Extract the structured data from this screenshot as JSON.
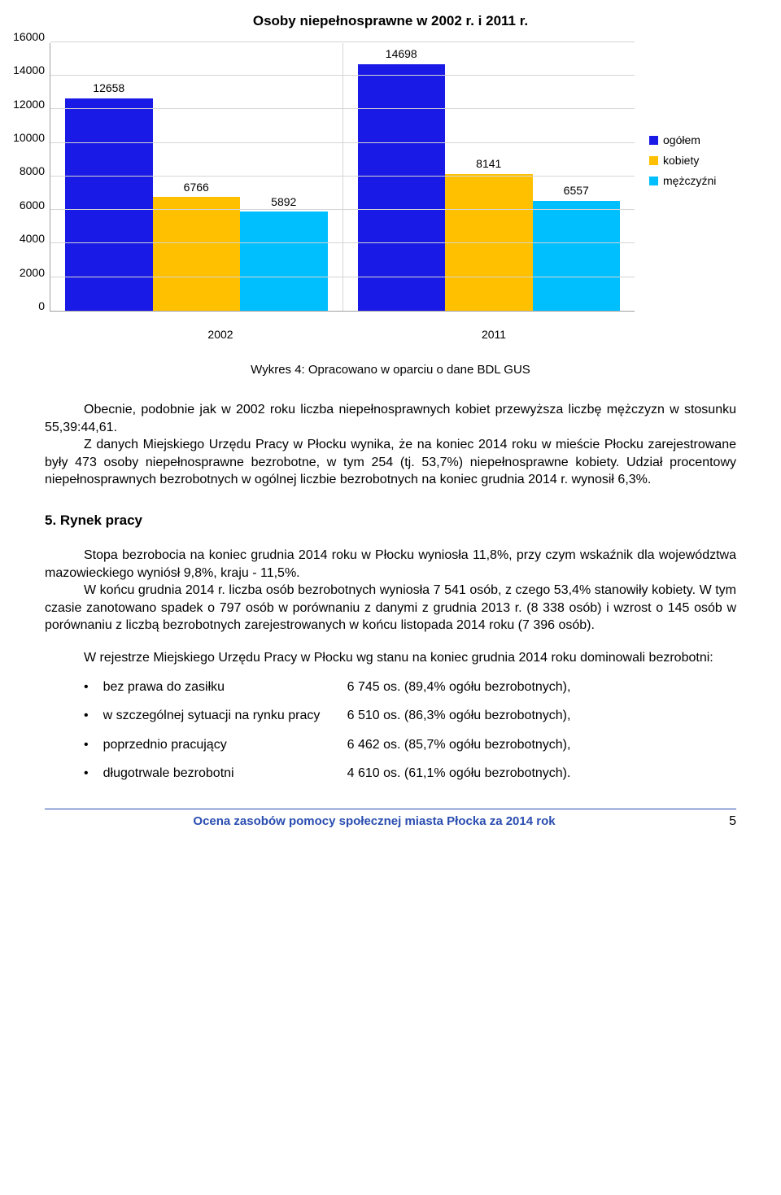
{
  "chart": {
    "type": "bar",
    "title": "Osoby niepełnosprawne w 2002 r. i 2011 r.",
    "categories": [
      "2002",
      "2011"
    ],
    "series": [
      {
        "name": "ogółem",
        "color": "#1a1ae6",
        "values": [
          12658,
          14698
        ]
      },
      {
        "name": "kobiety",
        "color": "#ffc000",
        "values": [
          6766,
          8141
        ]
      },
      {
        "name": "mężczyźni",
        "color": "#00bfff",
        "values": [
          5892,
          6557
        ]
      }
    ],
    "ylim": [
      0,
      16000
    ],
    "ytick_step": 2000,
    "grid_color": "#d5d5d5",
    "axis_color": "#a0a0a0",
    "background": "#ffffff",
    "label_fontsize": 14,
    "title_fontsize": 17,
    "caption": "Wykres 4: Opracowano w oparciu o dane BDL GUS"
  },
  "para1": "Obecnie, podobnie jak w 2002 roku liczba niepełnosprawnych kobiet przewyższa liczbę mężczyzn w stosunku 55,39:44,61.",
  "para2": "Z danych Miejskiego Urzędu Pracy w Płocku wynika, że na koniec 2014 roku w mieście Płocku zarejestrowane były 473 osoby niepełnosprawne bezrobotne, w tym 254 (tj. 53,7%) niepełnosprawne kobiety. Udział procentowy niepełnosprawnych bezrobotnych w ogólnej liczbie bezrobotnych na koniec grudnia 2014 r. wynosił 6,3%.",
  "section5_heading": "5. Rynek pracy",
  "para3": "Stopa bezrobocia na koniec grudnia 2014 roku w Płocku wyniosła 11,8%, przy czym wskaźnik dla województwa mazowieckiego wyniósł 9,8%, kraju - 11,5%.",
  "para4": "W końcu grudnia 2014 r. liczba osób bezrobotnych wyniosła 7 541 osób, z czego 53,4% stanowiły kobiety. W tym czasie zanotowano spadek o 797 osób w porównaniu z danymi z grudnia 2013 r. (8 338 osób) i wzrost o 145 osób w porównaniu z liczbą bezrobotnych zarejestrowanych w końcu listopada 2014 roku (7 396 osób).",
  "para5": "W rejestrze Miejskiego Urzędu Pracy w Płocku wg stanu na koniec grudnia 2014 roku dominowali bezrobotni:",
  "bullets": [
    {
      "label": "bez prawa do zasiłku",
      "value": "6 745 os. (89,4% ogółu bezrobotnych),"
    },
    {
      "label": "w szczególnej sytuacji na rynku pracy",
      "value": "6 510 os. (86,3% ogółu bezrobotnych),"
    },
    {
      "label": "poprzednio pracujący",
      "value": "6 462 os. (85,7% ogółu bezrobotnych),"
    },
    {
      "label": "długotrwale bezrobotni",
      "value": "4 610 os. (61,1% ogółu bezrobotnych)."
    }
  ],
  "footer": {
    "title": "Ocena zasobów pomocy społecznej miasta Płocka za 2014 rok",
    "page": "5"
  }
}
